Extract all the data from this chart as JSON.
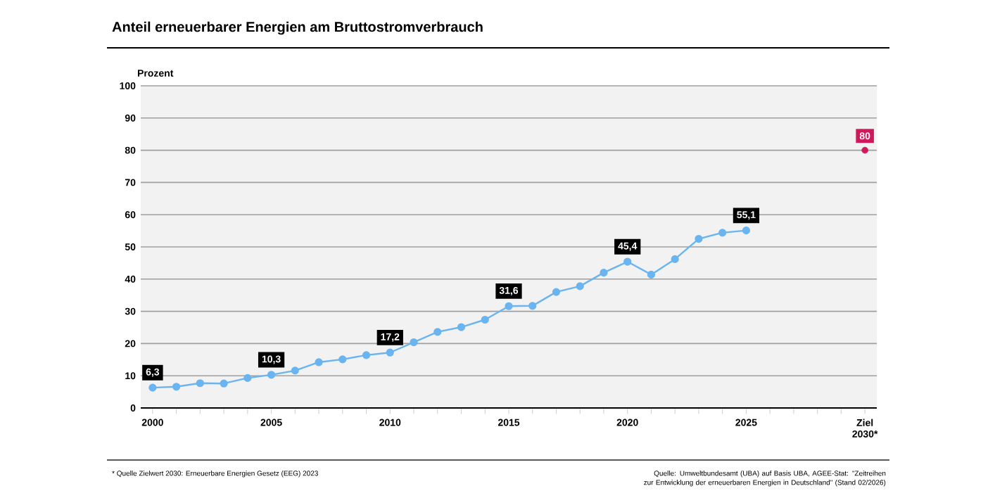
{
  "chart_data": {
    "type": "line",
    "title": "Anteil erneuerbarer Energien am Bruttostromverbrauch",
    "ylabel": "Prozent",
    "xlim": [
      1999.5,
      2030.5
    ],
    "ylim": [
      0,
      100
    ],
    "yticks": [
      0,
      10,
      20,
      30,
      40,
      50,
      60,
      70,
      80,
      90,
      100
    ],
    "xticks": [
      2000,
      {
        "value": 2001,
        "label": null
      },
      {
        "value": 2002,
        "label": null
      },
      {
        "value": 2003,
        "label": null
      },
      {
        "value": 2004,
        "label": null
      },
      2005,
      {
        "value": 2006,
        "label": null
      },
      {
        "value": 2007,
        "label": null
      },
      {
        "value": 2008,
        "label": null
      },
      {
        "value": 2009,
        "label": null
      },
      2010,
      {
        "value": 2011,
        "label": null
      },
      {
        "value": 2012,
        "label": null
      },
      {
        "value": 2013,
        "label": null
      },
      {
        "value": 2014,
        "label": null
      },
      2015,
      {
        "value": 2016,
        "label": null
      },
      {
        "value": 2017,
        "label": null
      },
      {
        "value": 2018,
        "label": null
      },
      {
        "value": 2019,
        "label": null
      },
      2020,
      {
        "value": 2021,
        "label": null
      },
      {
        "value": 2022,
        "label": null
      },
      {
        "value": 2023,
        "label": null
      },
      {
        "value": 2024,
        "label": null
      },
      2025,
      {
        "value": 2026,
        "label": null
      },
      {
        "value": 2027,
        "label": null
      },
      {
        "value": 2028,
        "label": null
      },
      {
        "value": 2029,
        "label": null
      },
      {
        "value": 2030,
        "label": "Ziel 2030*"
      }
    ],
    "grid": "y",
    "marker": "circle",
    "line_style": "solid",
    "series": [
      {
        "color": "#6ab4f0",
        "x": [
          2000,
          2001,
          2002,
          2003,
          2004,
          2005,
          2006,
          2007,
          2008,
          2009,
          2010,
          2011,
          2012,
          2013,
          2014,
          2015,
          2016,
          2017,
          2018,
          2019,
          2020,
          2021,
          2022,
          2023,
          2024,
          2025
        ],
        "values": [
          6.3,
          6.6,
          7.7,
          7.6,
          9.3,
          10.3,
          11.6,
          14.2,
          15.1,
          16.4,
          17.2,
          20.4,
          23.6,
          25.1,
          27.4,
          31.6,
          31.7,
          36.0,
          37.8,
          42.0,
          45.4,
          41.4,
          46.2,
          52.5,
          54.4,
          55.1
        ],
        "value_labels": [
          "6,3",
          null,
          null,
          null,
          null,
          "10,3",
          null,
          null,
          null,
          null,
          "17,2",
          null,
          null,
          null,
          null,
          "31,6",
          null,
          null,
          null,
          null,
          "45,4",
          null,
          null,
          null,
          null,
          "55,1"
        ]
      },
      {
        "type": "scatter",
        "color": "#d0185c",
        "x": [
          2030
        ],
        "values": [
          80
        ],
        "value_labels": [
          "80"
        ]
      }
    ],
    "annotations": [
      "* Quelle Zielwert 2030: Erneuerbare Energien Gesetz (EEG) 2023",
      "Quelle: Umweltbundesamt (UBA) auf Basis UBA, AGEE-Stat: \"Zeitreihen zur Entwicklung der erneuerbaren Energien in Deutschland\" (Stand 02/2026)"
    ]
  }
}
